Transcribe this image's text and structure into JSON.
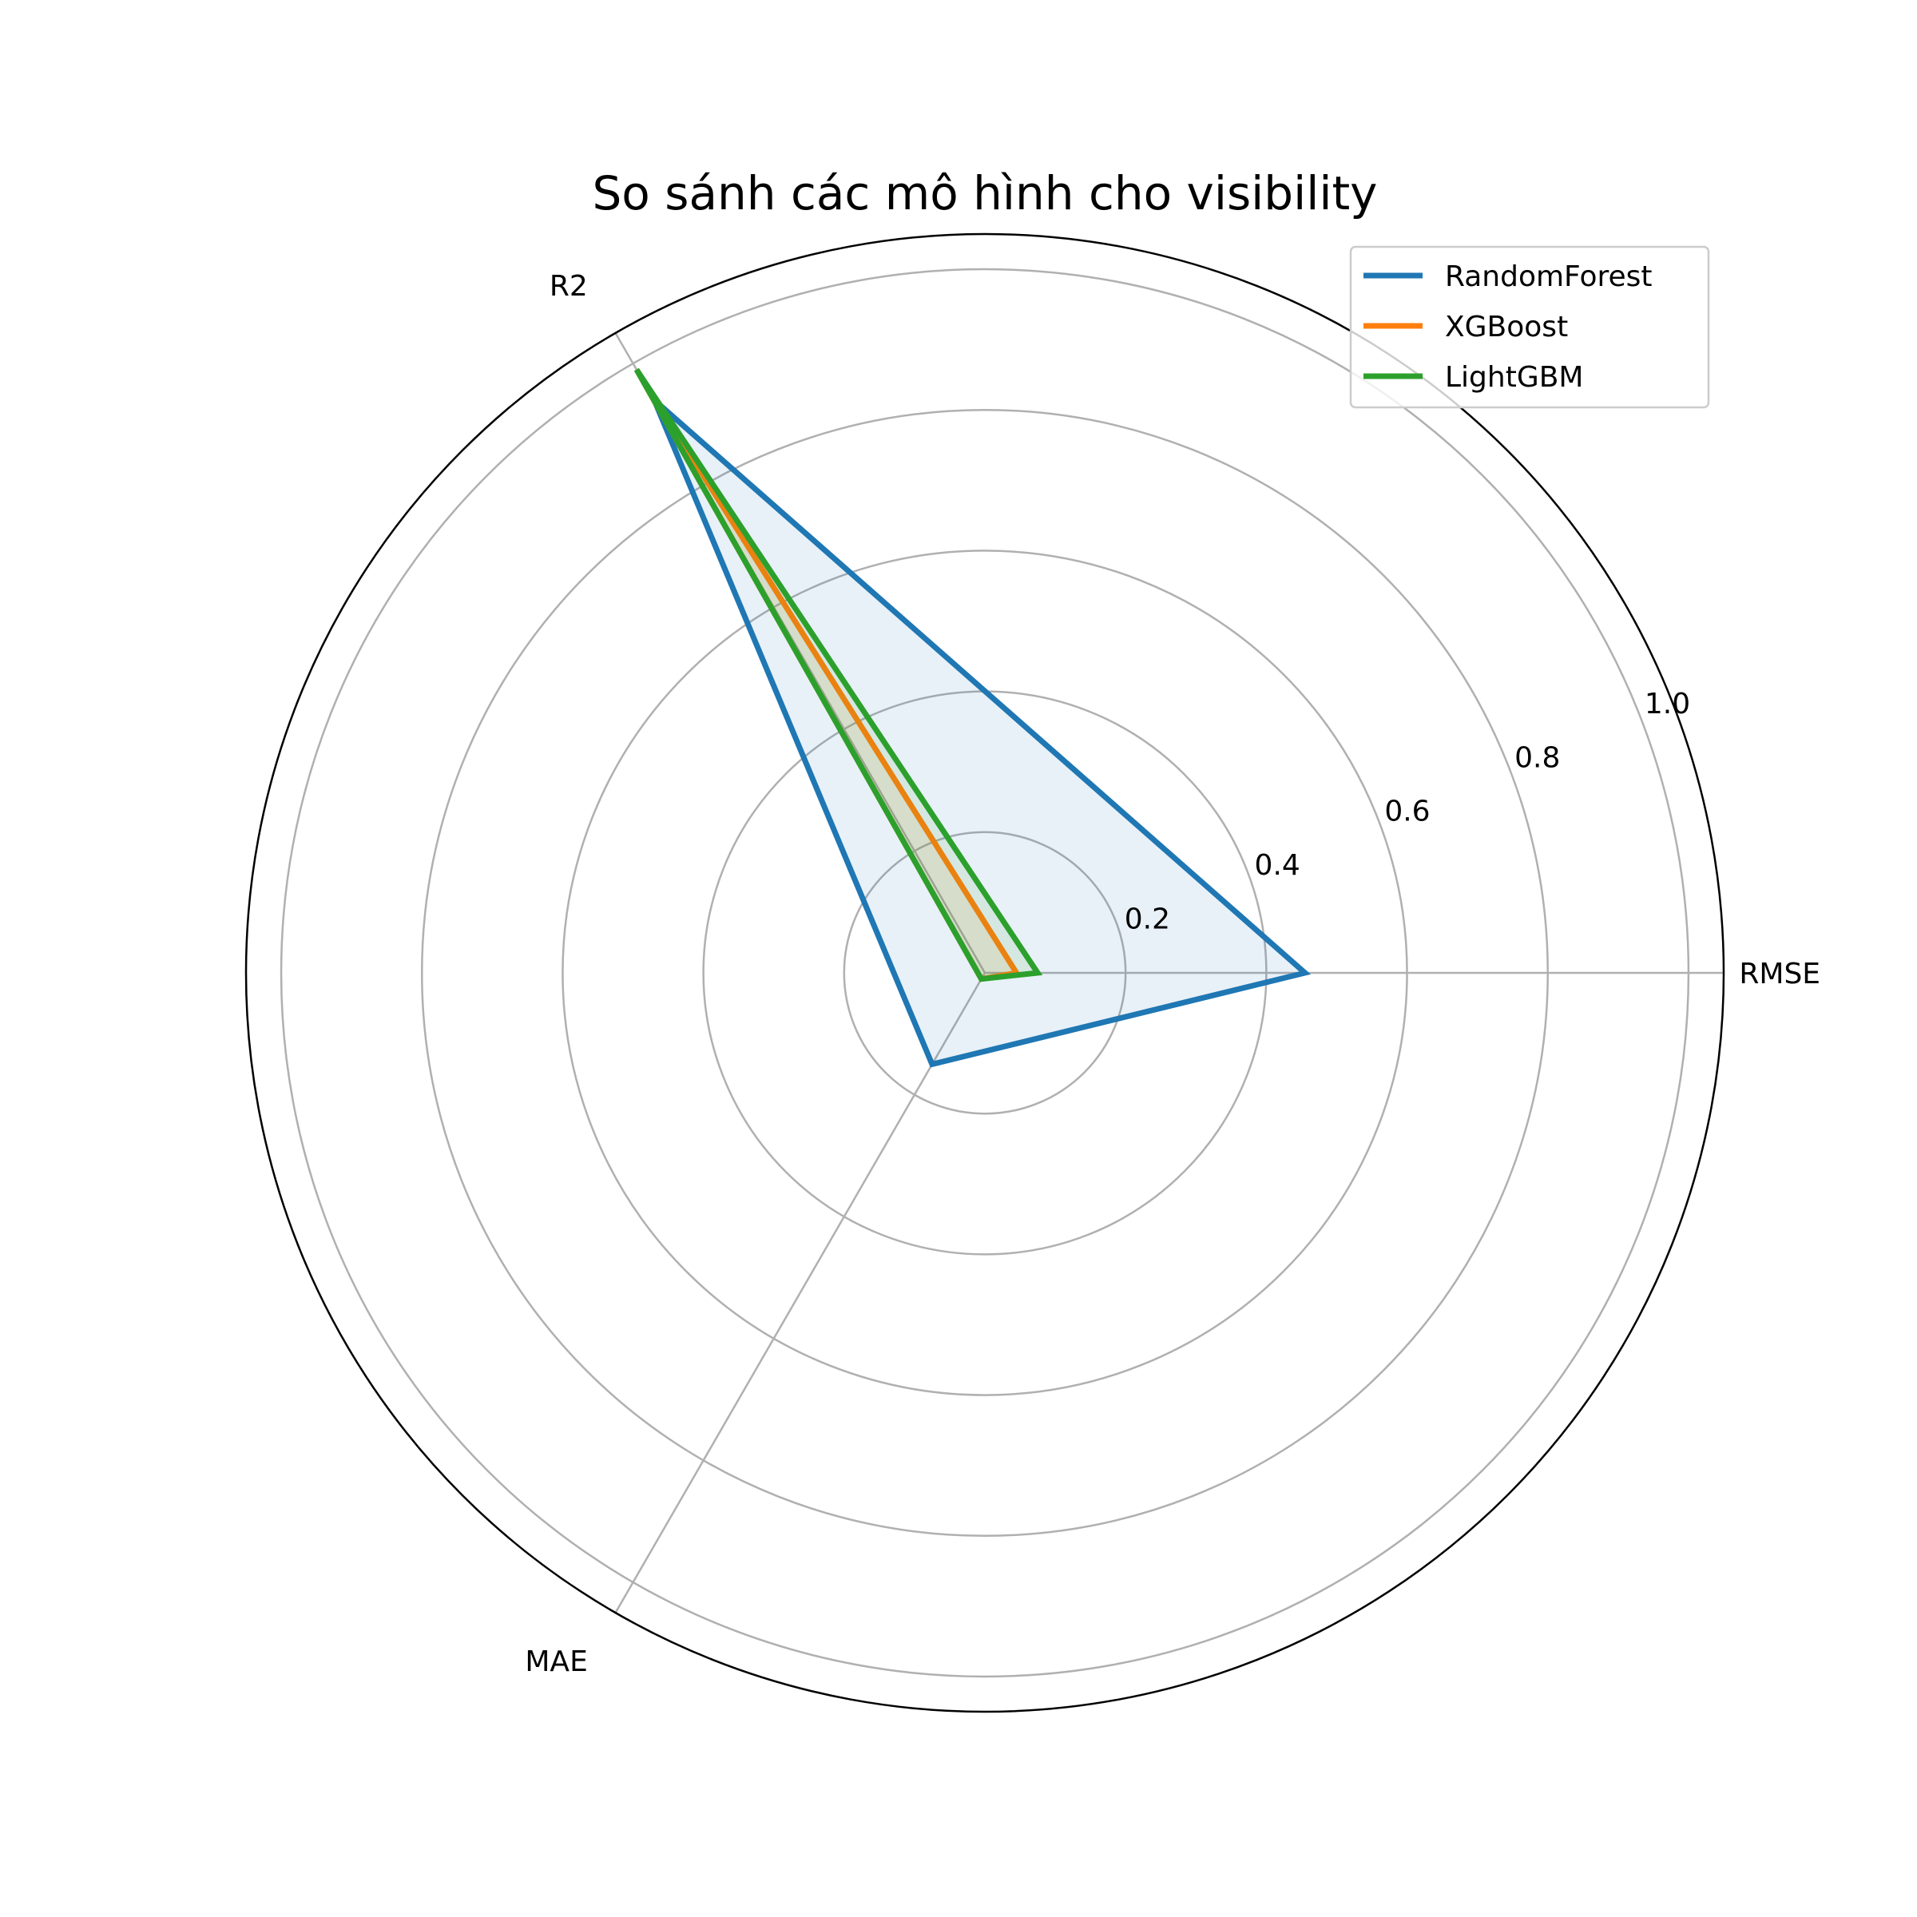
{
  "chart_data": {
    "type": "radar",
    "title": "So sánh các mô hình cho visibility",
    "axes": [
      "RMSE",
      "R2",
      "MAE"
    ],
    "rlim": [
      0,
      1.05
    ],
    "rticks": [
      0.2,
      0.4,
      0.6,
      0.8,
      1.0
    ],
    "rtick_labels": [
      "0.2",
      "0.4",
      "0.6",
      "0.8",
      "1.0"
    ],
    "grid": true,
    "legend_position": "top-right",
    "series": [
      {
        "name": "RandomForest",
        "color": "#1f77b4",
        "values": [
          0.455,
          0.94,
          0.15
        ]
      },
      {
        "name": "XGBoost",
        "color": "#ff7f0e",
        "values": [
          0.045,
          0.99,
          0.01
        ]
      },
      {
        "name": "LightGBM",
        "color": "#2ca02c",
        "values": [
          0.075,
          0.99,
          0.01
        ]
      }
    ]
  }
}
